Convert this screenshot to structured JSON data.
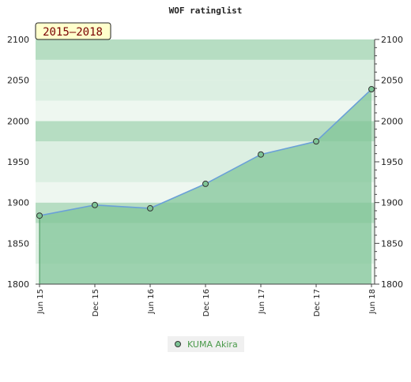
{
  "chart_data": {
    "type": "area",
    "title": "WOF ratinglist",
    "badge": "2015–2018",
    "x": [
      "Jun 15",
      "Dec 15",
      "Jun 16",
      "Dec 16",
      "Jun 17",
      "Dec 17",
      "Jun 18"
    ],
    "series": [
      {
        "name": "KUMA Akira",
        "values": [
          1884,
          1897,
          1893,
          1923,
          1959,
          1975,
          2039
        ]
      }
    ],
    "ylim": [
      1800,
      2100
    ],
    "yticks": [
      "1800",
      "1850",
      "1900",
      "1950",
      "2000",
      "2050",
      "2100"
    ],
    "grid": true,
    "legend": "bottom-center",
    "colors": {
      "line": "#6aa0d8",
      "area": "#7ec496",
      "marker": "#7ec496",
      "band_light": "#eef7f0",
      "band_mid": "#dcefe2",
      "band_dark": "#b6ddc2",
      "legend_text": "#4a9a4a",
      "badge_bg": "#ffffcc",
      "badge_text": "#7a0000"
    }
  }
}
